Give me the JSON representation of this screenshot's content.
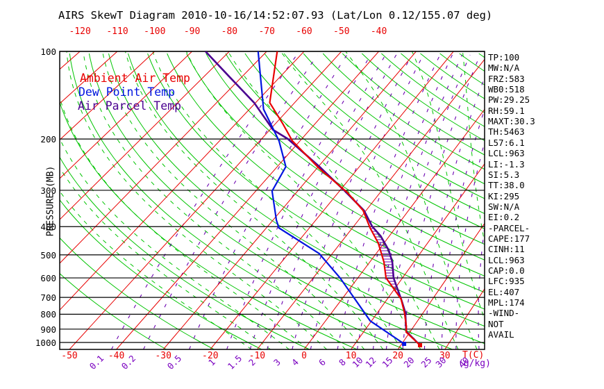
{
  "title": "AIRS SkewT Diagram 2010-10-16/14:52:07.93 (Lat/Lon 0.12/155.07 deg)",
  "legend": {
    "ambient": "Ambient Air Temp",
    "dew": "Dew Point Temp",
    "parcel": "Air Parcel Temp"
  },
  "axes": {
    "pressure_label": "PRESSURE (MB)",
    "pressure_ticks": [
      100,
      200,
      300,
      400,
      500,
      600,
      700,
      800,
      900,
      1000
    ],
    "top_temp_ticks": [
      -120,
      -110,
      -100,
      -90,
      -80,
      -70,
      -60,
      -50,
      -40
    ],
    "bottom_temp_ticks": [
      -50,
      -40,
      -30,
      -20,
      -10,
      0,
      10,
      20,
      30
    ],
    "temp_label": "T(C)",
    "mixing_label": "(g/kg)",
    "mixing_ticks": [
      "0.1",
      "0.2",
      "0.5",
      "1",
      "1.5",
      "2",
      "3",
      "4",
      "6",
      "8",
      "10",
      "12",
      "15",
      "20",
      "25",
      "30",
      "40"
    ]
  },
  "panel": {
    "lines": [
      "TP:100",
      "MW:N/A",
      "FRZ:583",
      "WB0:518",
      "PW:29.25",
      "RH:59.1",
      "MAXT:30.3",
      "TH:5463",
      "L57:6.1",
      "LCL:963",
      "LI:-1.3",
      "SI:5.3",
      "TT:38.0",
      "KI:295",
      "SW:N/A",
      "EI:0.2",
      "-PARCEL-",
      "CAPE:177",
      "CINH:11",
      "LCL:963",
      "CAP:0.0",
      "LFC:935",
      "EL:407",
      "MPL:174",
      "-WIND-",
      "NOT",
      "AVAIL"
    ]
  },
  "colors": {
    "isotherm": "#e80000",
    "adiabat_dry": "#00c400",
    "adiabat_moist": "#00c400",
    "mixing_ratio": "#6a00b0",
    "pressure_line": "#000000",
    "ambient": "#e80000",
    "dew_point": "#0014e0",
    "parcel": "#4a0090",
    "hatch": "#6a00b0",
    "tick_red": "#e80000",
    "tick_purple": "#7a00c0"
  },
  "chart_data": {
    "type": "line",
    "title": "AIRS SkewT Diagram 2010-10-16/14:52:07.93 (Lat/Lon 0.12/155.07 deg)",
    "xlabel": "Temperature (C)",
    "ylabel": "Pressure (MB)",
    "pressure_range": [
      100,
      1057
    ],
    "bottom_temp_range": [
      -50,
      30
    ],
    "top_temp_range": [
      -120,
      -40
    ],
    "grid": {
      "isotherms_c": {
        "min": -160,
        "max": 40,
        "step": 10
      },
      "dry_adiabats_k": {
        "min": 240,
        "max": 510,
        "step": 10
      },
      "moist_adiabats_k": {
        "min": 261,
        "max": 333,
        "step": 4
      },
      "mixing_ratio_gkg": [
        0.1,
        0.2,
        0.5,
        1,
        1.5,
        2,
        3,
        4,
        6,
        8,
        10,
        12,
        15,
        20,
        25,
        30,
        40
      ],
      "pressure_lines_mb": [
        100,
        200,
        300,
        400,
        500,
        600,
        700,
        800,
        900,
        1000
      ]
    },
    "series": [
      {
        "name": "Ambient Air Temp",
        "key": "ambient",
        "points": [
          [
            100,
            -67.2
          ],
          [
            150,
            -56.4
          ],
          [
            177,
            -48.2
          ],
          [
            203,
            -41.9
          ],
          [
            253,
            -29.3
          ],
          [
            305,
            -17.9
          ],
          [
            352,
            -10.7
          ],
          [
            404,
            -5.9
          ],
          [
            456,
            -1.3
          ],
          [
            529,
            3.2
          ],
          [
            600,
            6.3
          ],
          [
            708,
            13.0
          ],
          [
            790,
            15.9
          ],
          [
            881,
            18.4
          ],
          [
            921,
            19.2
          ],
          [
            1022,
            24.1
          ]
        ]
      },
      {
        "name": "Dew Point Temp",
        "key": "dew",
        "points": [
          [
            100,
            -72.3
          ],
          [
            158,
            -56.4
          ],
          [
            203,
            -45.2
          ],
          [
            249,
            -37.9
          ],
          [
            302,
            -36.1
          ],
          [
            380,
            -29.2
          ],
          [
            404,
            -27.1
          ],
          [
            495,
            -13.0
          ],
          [
            600,
            -4.0
          ],
          [
            843,
            9.7
          ],
          [
            1011,
            20.5
          ]
        ]
      },
      {
        "name": "Air Parcel Temp",
        "key": "parcel",
        "points": [
          [
            100,
            -86.4
          ],
          [
            122,
            -73.4
          ],
          [
            150,
            -60.4
          ],
          [
            186,
            -49.2
          ],
          [
            200,
            -43.4
          ],
          [
            249,
            -29.7
          ],
          [
            302,
            -18.7
          ],
          [
            352,
            -10.5
          ],
          [
            399,
            -5.7
          ],
          [
            431,
            -2.0
          ],
          [
            482,
            2.3
          ],
          [
            529,
            5.1
          ],
          [
            600,
            8.0
          ],
          [
            715,
            13.3
          ],
          [
            790,
            16.1
          ],
          [
            916,
            19.1
          ],
          [
            1022,
            24.1
          ]
        ]
      }
    ],
    "surface_markers": [
      {
        "series": "ambient",
        "p": 1022,
        "t": 24.1
      },
      {
        "series": "dew",
        "p": 1011,
        "t": 20.5
      }
    ],
    "cape_hatch": {
      "p_top": 404,
      "p_bottom": 916
    }
  }
}
